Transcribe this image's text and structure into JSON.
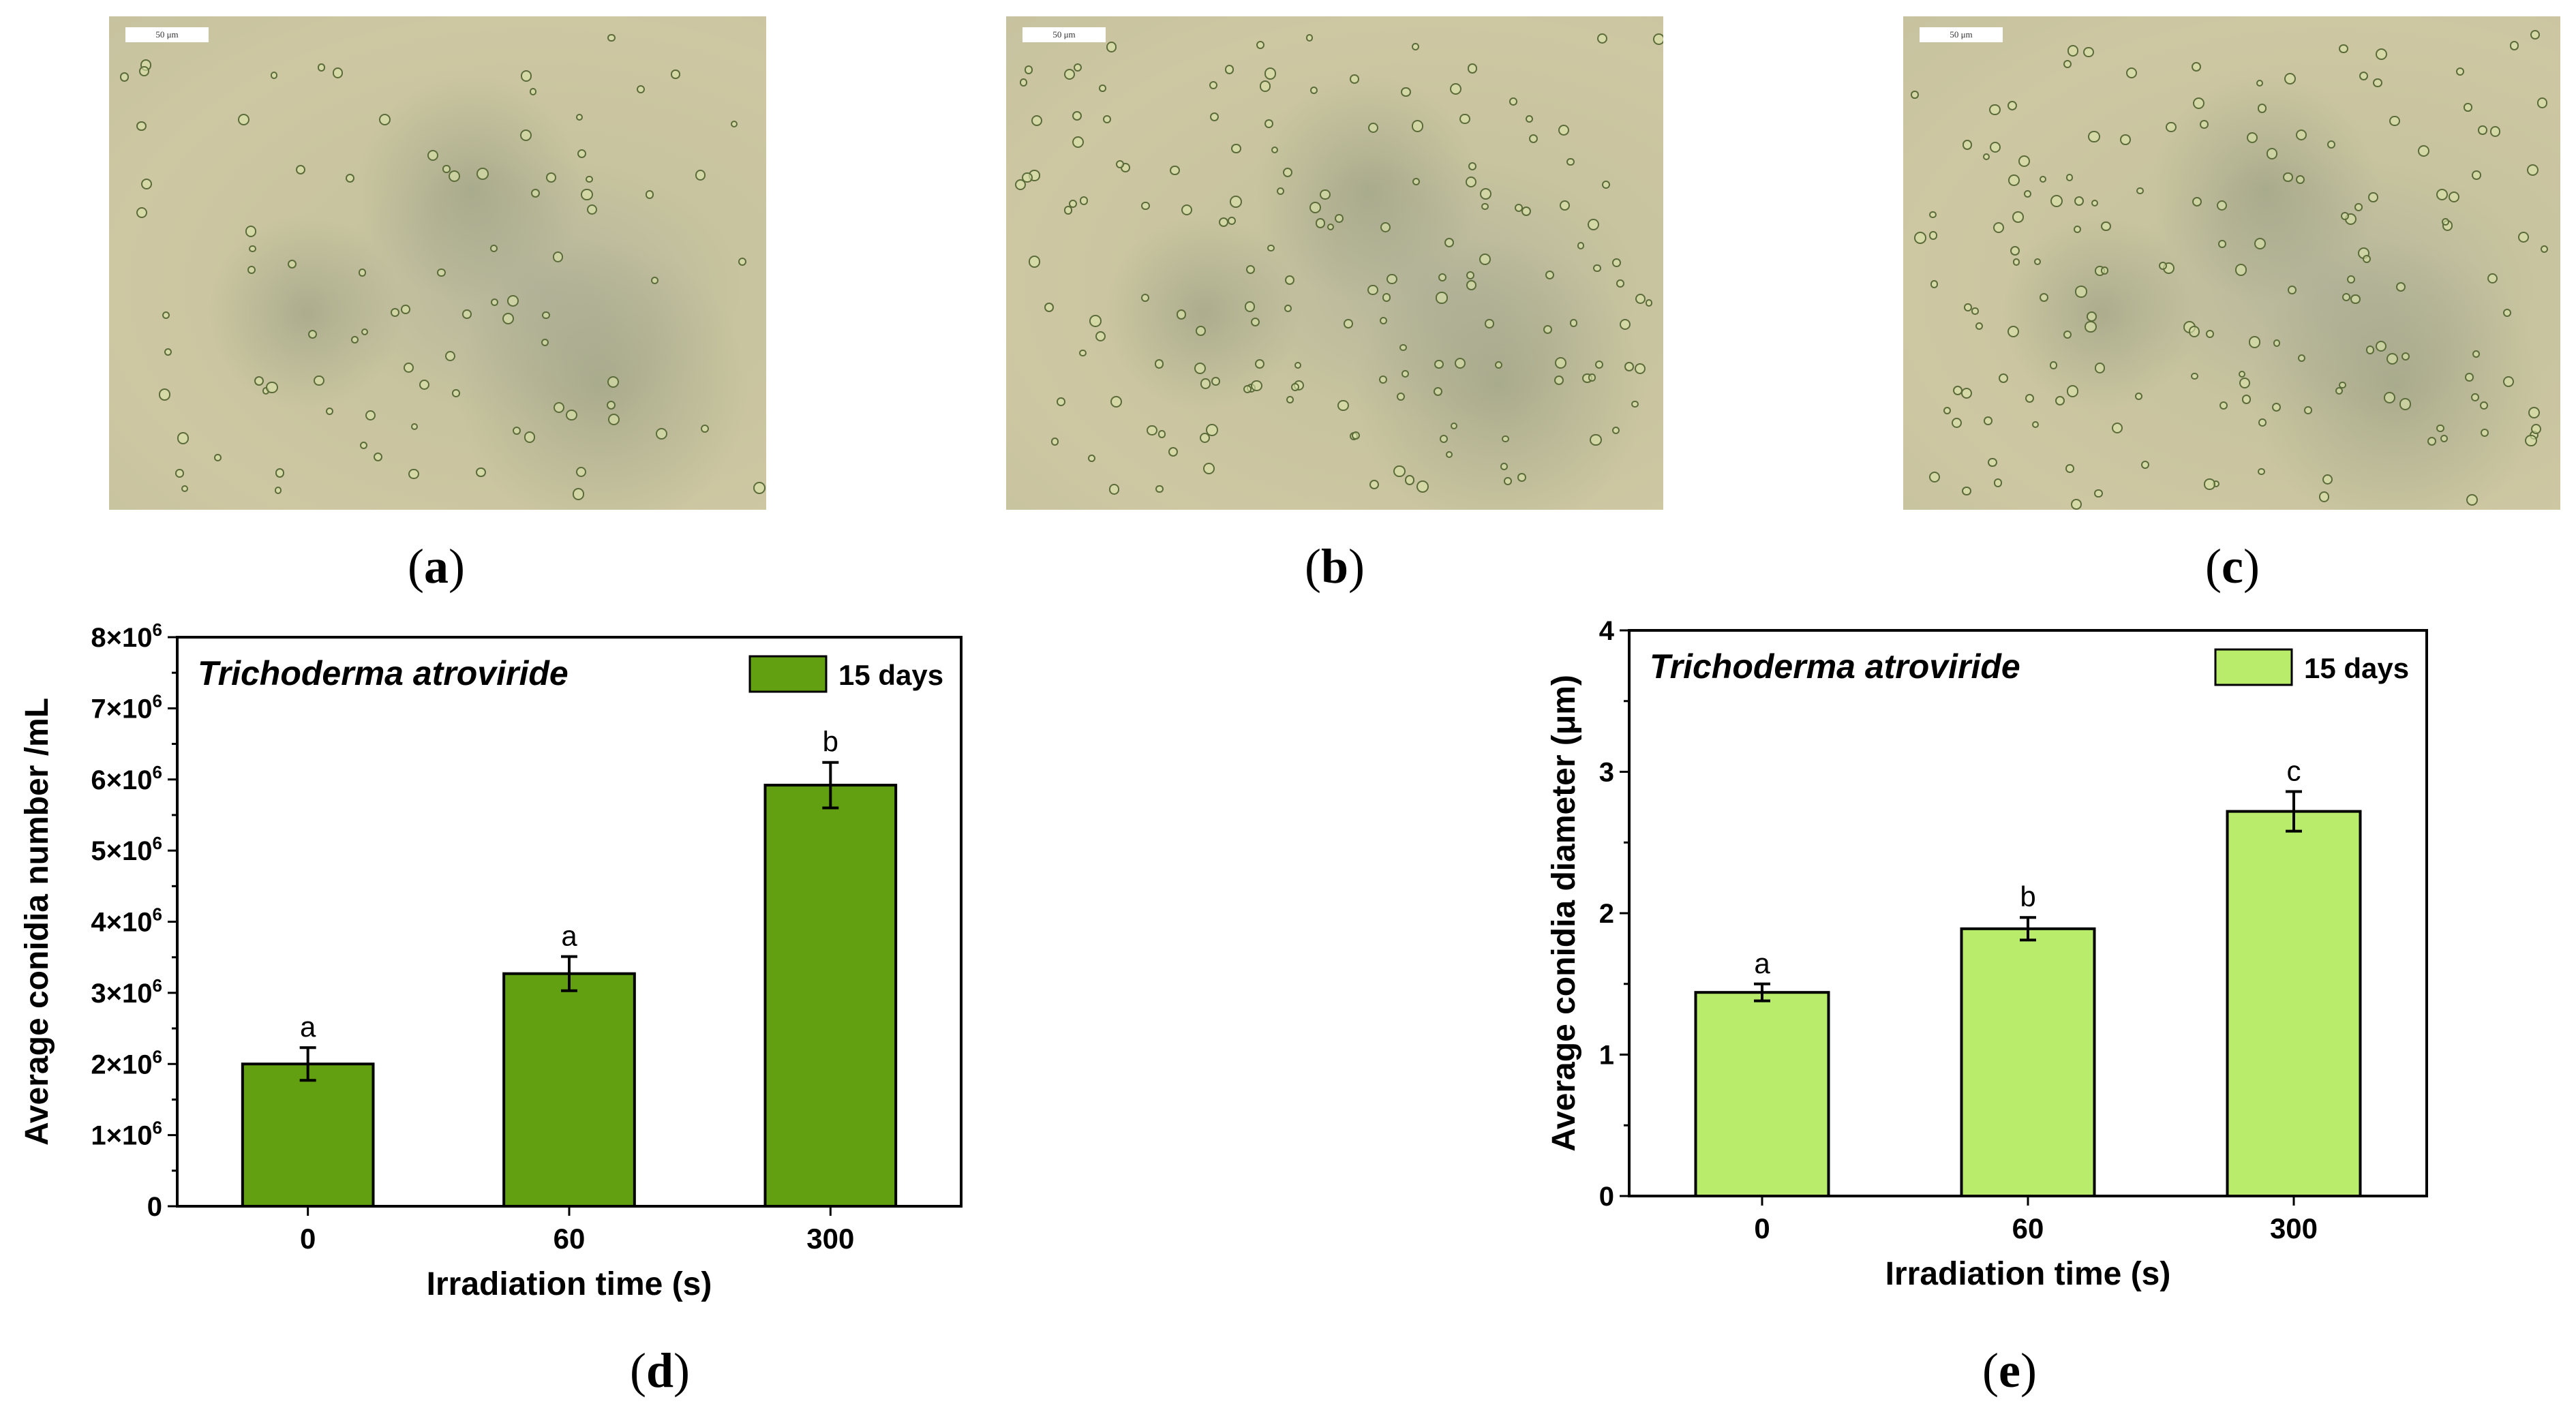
{
  "micrographs": [
    {
      "id": "a",
      "scale_label": "50 μm"
    },
    {
      "id": "b",
      "scale_label": "50 μm"
    },
    {
      "id": "c",
      "scale_label": "50 μm"
    }
  ],
  "panel_labels": {
    "a": "a",
    "b": "b",
    "c": "c",
    "d": "d",
    "e": "e"
  },
  "colors": {
    "chart_d_bar": "#62a012",
    "chart_e_bar": "#b9ec6a"
  },
  "chart_data": [
    {
      "panel": "d",
      "type": "bar",
      "title": "Trichoderma atroviride",
      "legend": "15 days",
      "legend_position": "top-right",
      "xlabel": "Irradiation time (s)",
      "ylabel": "Average conidia number /mL",
      "categories": [
        "0",
        "60",
        "300"
      ],
      "values": [
        2000000,
        3270000,
        5920000
      ],
      "errors": [
        230000,
        240000,
        320000
      ],
      "significance": [
        "a",
        "a",
        "b"
      ],
      "ylim": [
        0,
        8000000
      ],
      "yticks": [
        0,
        1000000,
        2000000,
        3000000,
        4000000,
        5000000,
        6000000,
        7000000,
        8000000
      ],
      "ytick_mantissas": [
        "0",
        "1×10",
        "2×10",
        "3×10",
        "4×10",
        "5×10",
        "6×10",
        "7×10",
        "8×10"
      ],
      "ytick_exponent": "6",
      "grid": false
    },
    {
      "panel": "e",
      "type": "bar",
      "title": "Trichoderma atroviride",
      "legend": "15 days",
      "legend_position": "top-right",
      "xlabel": "Irradiation time (s)",
      "ylabel": "Average conidia diameter (μm)",
      "categories": [
        "0",
        "60",
        "300"
      ],
      "values": [
        1.44,
        1.89,
        2.72
      ],
      "errors": [
        0.06,
        0.08,
        0.14
      ],
      "significance": [
        "a",
        "b",
        "c"
      ],
      "ylim": [
        0,
        4
      ],
      "yticks": [
        0,
        1,
        2,
        3,
        4
      ],
      "ytick_labels": [
        "0",
        "1",
        "2",
        "3",
        "4"
      ],
      "grid": false
    }
  ]
}
